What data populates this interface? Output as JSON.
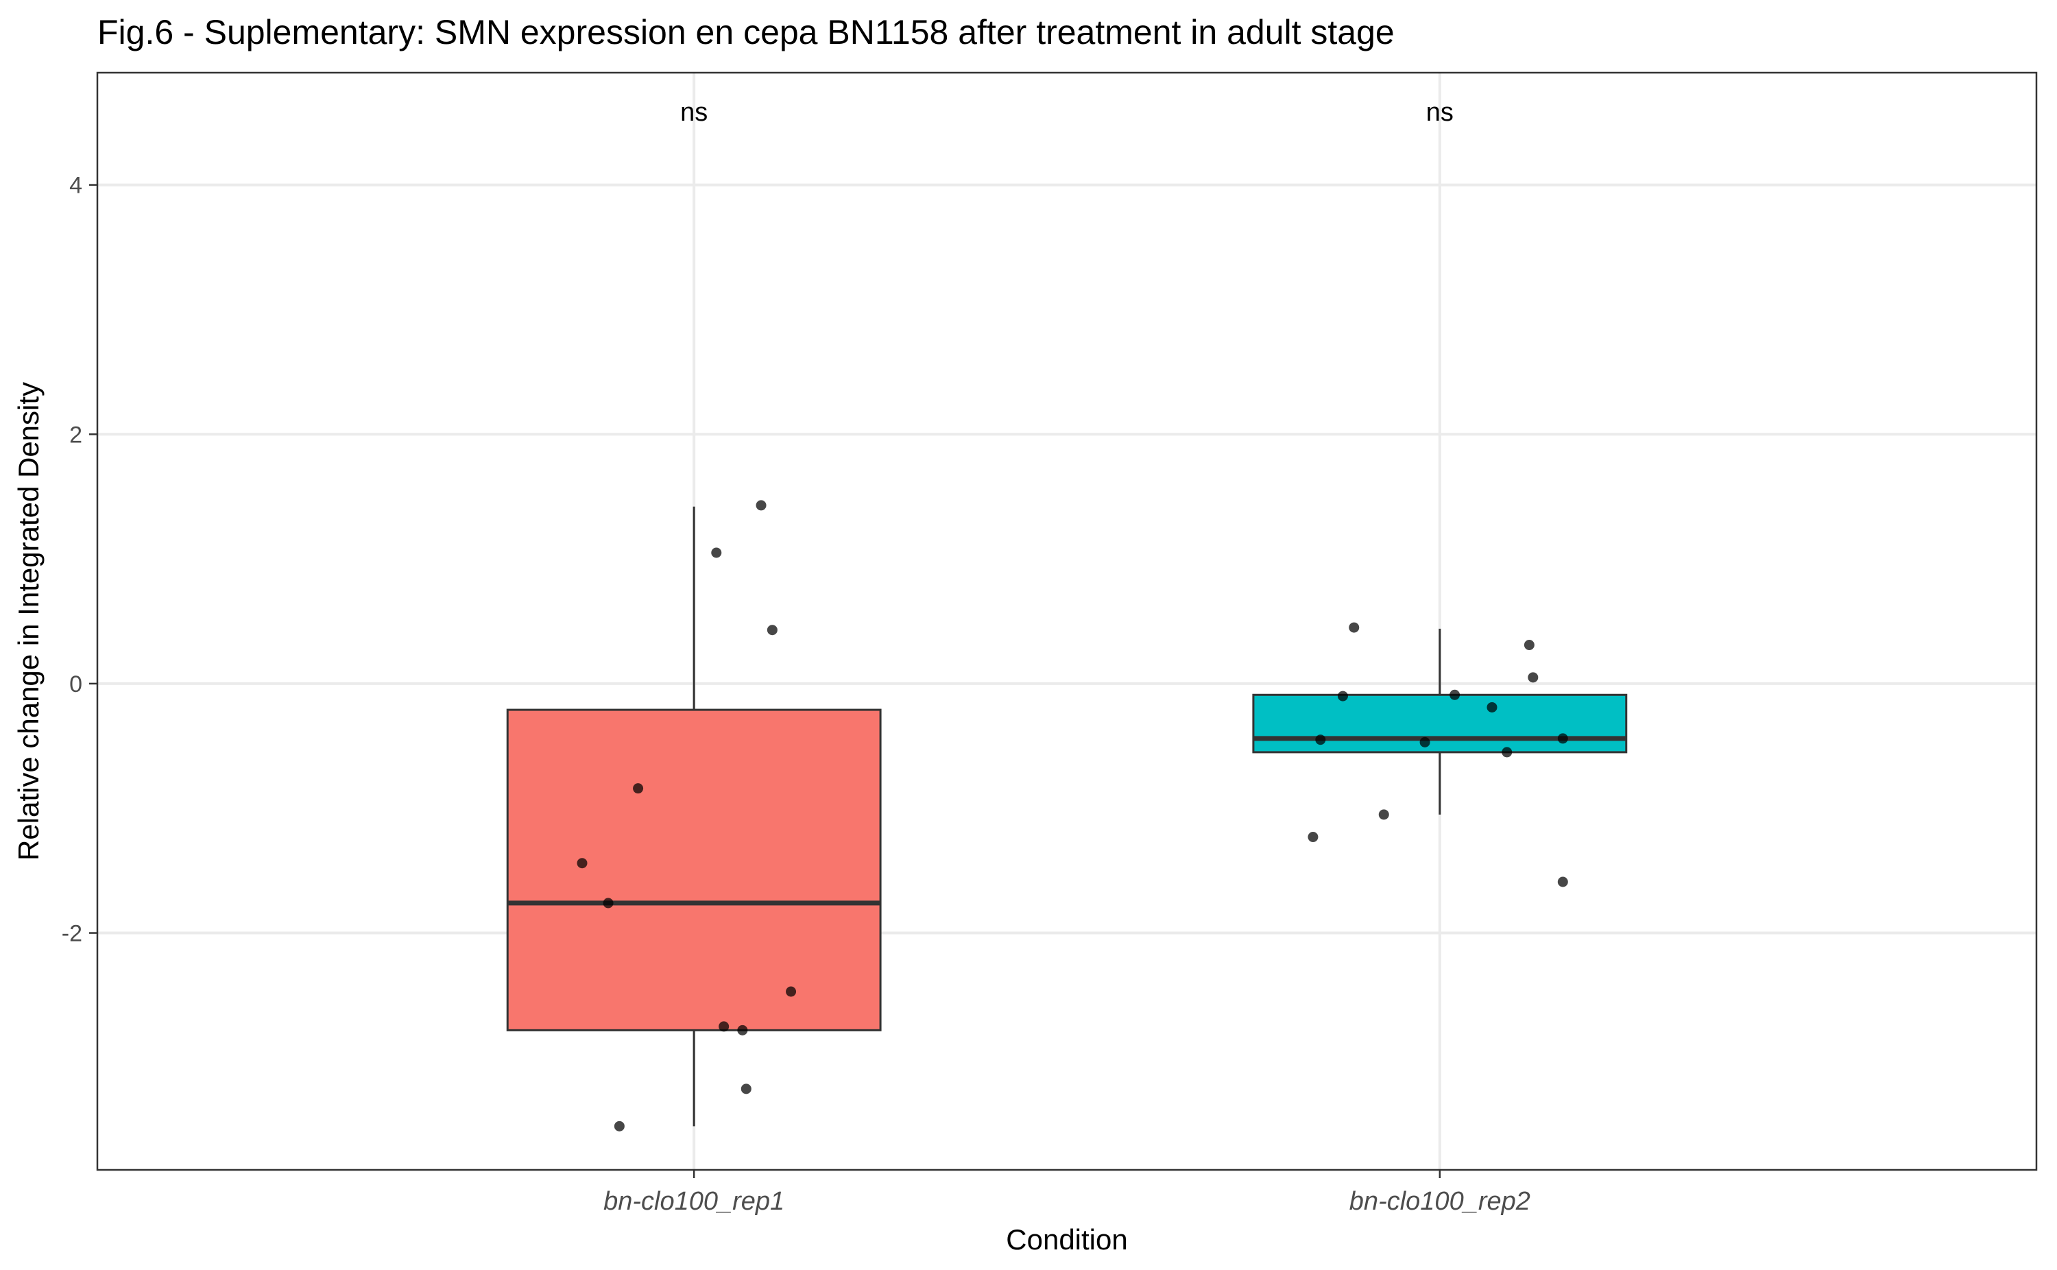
{
  "chart_data": {
    "type": "box",
    "title": "Fig.6 - Suplementary: SMN expression en cepa BN1158 after treatment in adult stage",
    "xlabel": "Condition",
    "ylabel": "Relative change in Integrated Density",
    "ylim": [
      -3.9,
      4.9
    ],
    "yticks": [
      -2,
      0,
      2,
      4
    ],
    "grid": true,
    "legend": "none",
    "categories": [
      "bn-clo100_rep1",
      "bn-clo100_rep2"
    ],
    "annotations": [
      "ns",
      "ns"
    ],
    "boxes": [
      {
        "name": "bn-clo100_rep1",
        "color": "#F8766D",
        "min": -3.55,
        "q1": -2.78,
        "median": -1.76,
        "q3": -0.21,
        "max": 1.42
      },
      {
        "name": "bn-clo100_rep2",
        "color": "#00BFC4",
        "min": -1.05,
        "q1": -0.55,
        "median": -0.44,
        "q3": -0.09,
        "max": 0.44
      }
    ],
    "points": [
      {
        "category": "bn-clo100_rep1",
        "jitter": 0.09,
        "y": 1.43
      },
      {
        "category": "bn-clo100_rep1",
        "jitter": 0.03,
        "y": 1.05
      },
      {
        "category": "bn-clo100_rep1",
        "jitter": 0.105,
        "y": 0.43
      },
      {
        "category": "bn-clo100_rep1",
        "jitter": -0.075,
        "y": -0.84
      },
      {
        "category": "bn-clo100_rep1",
        "jitter": -0.15,
        "y": -1.44
      },
      {
        "category": "bn-clo100_rep1",
        "jitter": -0.115,
        "y": -1.76
      },
      {
        "category": "bn-clo100_rep1",
        "jitter": 0.13,
        "y": -2.47
      },
      {
        "category": "bn-clo100_rep1",
        "jitter": 0.04,
        "y": -2.75
      },
      {
        "category": "bn-clo100_rep1",
        "jitter": 0.065,
        "y": -2.78
      },
      {
        "category": "bn-clo100_rep1",
        "jitter": 0.07,
        "y": -3.25
      },
      {
        "category": "bn-clo100_rep1",
        "jitter": -0.1,
        "y": -3.55
      },
      {
        "category": "bn-clo100_rep2",
        "jitter": -0.115,
        "y": 0.45
      },
      {
        "category": "bn-clo100_rep2",
        "jitter": 0.12,
        "y": 0.31
      },
      {
        "category": "bn-clo100_rep2",
        "jitter": 0.125,
        "y": 0.05
      },
      {
        "category": "bn-clo100_rep2",
        "jitter": -0.13,
        "y": -0.1
      },
      {
        "category": "bn-clo100_rep2",
        "jitter": 0.02,
        "y": -0.09
      },
      {
        "category": "bn-clo100_rep2",
        "jitter": 0.07,
        "y": -0.19
      },
      {
        "category": "bn-clo100_rep2",
        "jitter": -0.16,
        "y": -0.45
      },
      {
        "category": "bn-clo100_rep2",
        "jitter": -0.02,
        "y": -0.47
      },
      {
        "category": "bn-clo100_rep2",
        "jitter": 0.165,
        "y": -0.44
      },
      {
        "category": "bn-clo100_rep2",
        "jitter": 0.09,
        "y": -0.55
      },
      {
        "category": "bn-clo100_rep2",
        "jitter": -0.075,
        "y": -1.05
      },
      {
        "category": "bn-clo100_rep2",
        "jitter": -0.17,
        "y": -1.23
      },
      {
        "category": "bn-clo100_rep2",
        "jitter": 0.165,
        "y": -1.59
      }
    ]
  }
}
